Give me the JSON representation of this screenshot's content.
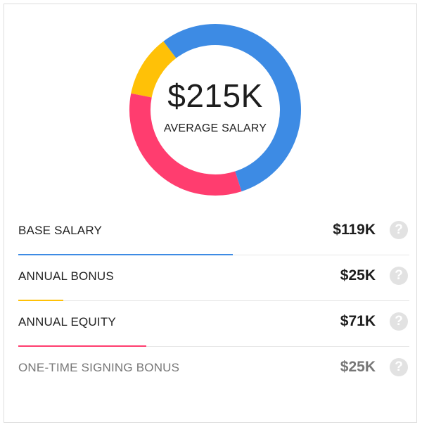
{
  "summary": {
    "total": "$215K",
    "label": "AVERAGE SALARY"
  },
  "chart_data": {
    "type": "pie",
    "subtype": "donut",
    "categories": [
      "BASE SALARY",
      "ANNUAL BONUS",
      "ANNUAL EQUITY"
    ],
    "values": [
      119,
      25,
      71
    ],
    "colors": [
      "#3d8be4",
      "#ffc107",
      "#ff3d6f"
    ],
    "unit": "$K"
  },
  "components": [
    {
      "label": "BASE SALARY",
      "amount": "$119K",
      "value": 119,
      "color": "#3d8be4",
      "muted": false
    },
    {
      "label": "ANNUAL BONUS",
      "amount": "$25K",
      "value": 25,
      "color": "#ffc107",
      "muted": false
    },
    {
      "label": "ANNUAL EQUITY",
      "amount": "$71K",
      "value": 71,
      "color": "#ff3d6f",
      "muted": false
    },
    {
      "label": "ONE-TIME SIGNING BONUS",
      "amount": "$25K",
      "value": 25,
      "color": "",
      "muted": true
    }
  ],
  "help_icon": {
    "name": "question-mark-icon",
    "glyph": "?"
  }
}
